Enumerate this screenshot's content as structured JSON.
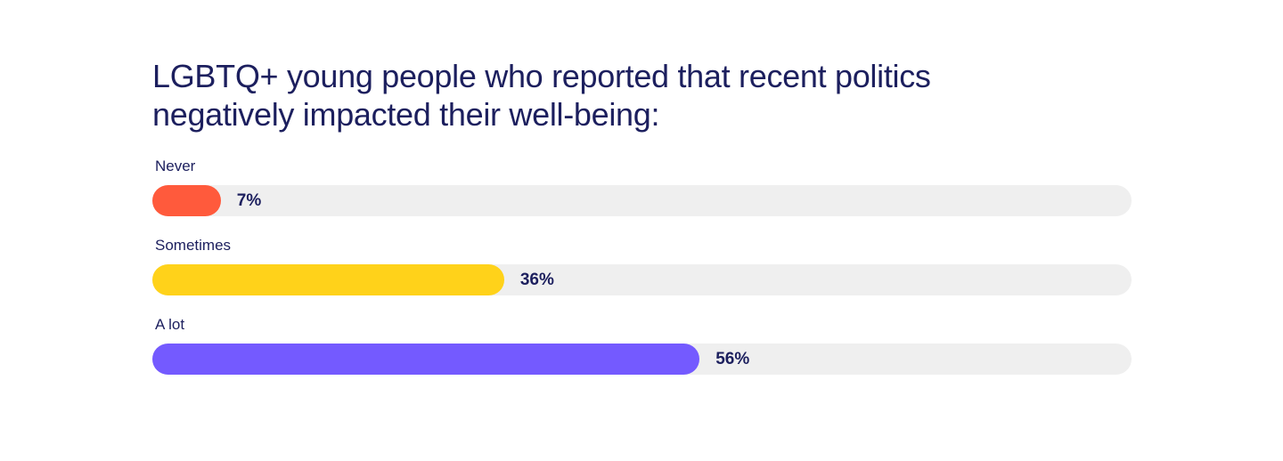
{
  "chart_data": {
    "type": "bar",
    "orientation": "horizontal",
    "title": "LGBTQ+ young people who reported that recent politics negatively impacted their well-being:",
    "xlim": [
      0,
      100
    ],
    "grid": false,
    "bars": [
      {
        "category": "Never",
        "value": 7,
        "label": "7%",
        "color": "#ff5a3c"
      },
      {
        "category": "Sometimes",
        "value": 36,
        "label": "36%",
        "color": "#ffd21a"
      },
      {
        "category": "A lot",
        "value": 56,
        "label": "56%",
        "color": "#745aff"
      }
    ],
    "track_color": "#efefef"
  }
}
